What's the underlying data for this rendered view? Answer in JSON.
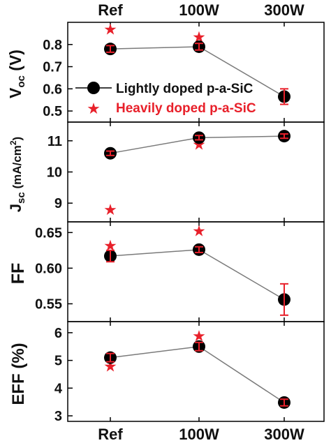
{
  "colors": {
    "series_main": "#000000",
    "series_heavy": "#e8202a",
    "errorbar": "#e8202a",
    "line": "#7a7a7a"
  },
  "legend": {
    "items": [
      {
        "label": "Lightly doped p-a-SiC",
        "marker": "circle"
      },
      {
        "label": "Heavily doped p-a-SiC",
        "marker": "star"
      }
    ],
    "placement": "inside-top-panel-lower-left"
  },
  "ylabels": {
    "voc_main": "V",
    "voc_sub": "oc",
    "voc_unit": " (V)",
    "jsc_main": "J",
    "jsc_sub": "sc",
    "jsc_unit": " (mA/cm",
    "jsc_sup": "2",
    "jsc_close": ")",
    "ff": "FF",
    "eff": "EFF (%)"
  },
  "chart_data": [
    {
      "type": "line",
      "panel": "Voc",
      "categories": [
        "Ref",
        "100W",
        "300W"
      ],
      "ylim": [
        0.45,
        0.9
      ],
      "ticks": [
        "0.5",
        "0.6",
        "0.7",
        "0.8"
      ],
      "tick_values": [
        0.5,
        0.6,
        0.7,
        0.8
      ],
      "series": [
        {
          "name": "Lightly doped p-a-SiC",
          "values": [
            0.78,
            0.79,
            0.565
          ],
          "err": [
            0.015,
            0.015,
            0.035
          ]
        },
        {
          "name": "Heavily doped p-a-SiC",
          "values": [
            0.87,
            0.835,
            null
          ]
        }
      ]
    },
    {
      "type": "line",
      "panel": "Jsc",
      "categories": [
        "Ref",
        "100W",
        "300W"
      ],
      "ylim": [
        8.4,
        11.6
      ],
      "ticks": [
        "9",
        "10",
        "11"
      ],
      "tick_values": [
        9,
        10,
        11
      ],
      "series": [
        {
          "name": "Lightly doped p-a-SiC",
          "values": [
            10.6,
            11.1,
            11.15
          ],
          "err": [
            0.07,
            0.07,
            0.07
          ]
        },
        {
          "name": "Heavily doped p-a-SiC",
          "values": [
            8.8,
            10.9,
            null
          ]
        }
      ]
    },
    {
      "type": "line",
      "panel": "FF",
      "categories": [
        "Ref",
        "100W",
        "300W"
      ],
      "ylim": [
        0.525,
        0.665
      ],
      "ticks": [
        "0.55",
        "0.60",
        "0.65"
      ],
      "tick_values": [
        0.55,
        0.6,
        0.65
      ],
      "series": [
        {
          "name": "Lightly doped p-a-SiC",
          "values": [
            0.617,
            0.626,
            0.556
          ],
          "err": [
            0.008,
            0.004,
            0.022
          ]
        },
        {
          "name": "Heavily doped p-a-SiC",
          "values": [
            0.632,
            0.653,
            null
          ]
        }
      ]
    },
    {
      "type": "line",
      "panel": "EFF",
      "categories": [
        "Ref",
        "100W",
        "300W"
      ],
      "ylim": [
        2.8,
        6.4
      ],
      "ticks": [
        "3",
        "4",
        "5",
        "6"
      ],
      "tick_values": [
        3,
        4,
        5,
        6
      ],
      "series": [
        {
          "name": "Lightly doped p-a-SiC",
          "values": [
            5.1,
            5.5,
            3.48
          ],
          "err": [
            0.15,
            0.15,
            0.12
          ]
        },
        {
          "name": "Heavily doped p-a-SiC",
          "values": [
            4.8,
            5.9,
            null
          ]
        }
      ]
    }
  ]
}
